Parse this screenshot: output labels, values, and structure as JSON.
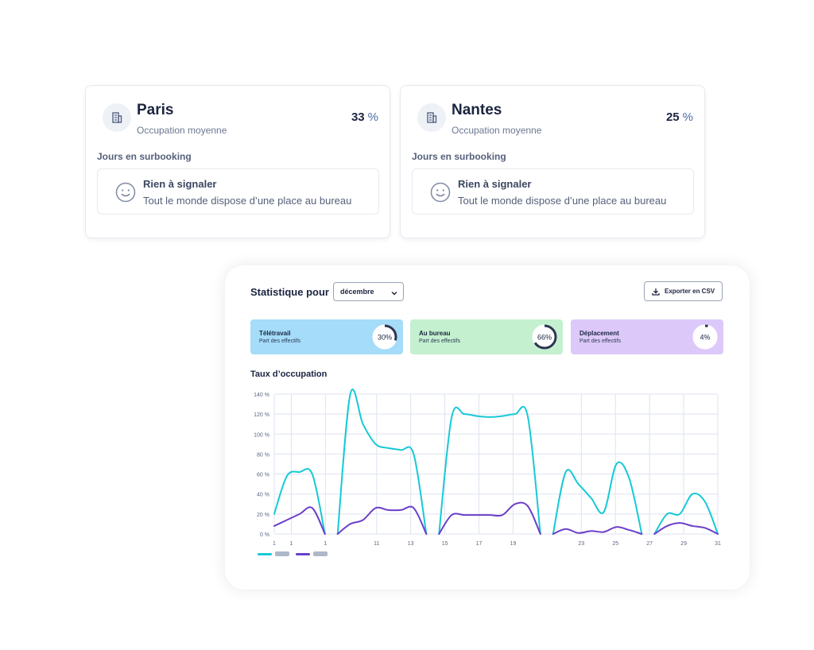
{
  "sites": [
    {
      "name": "Paris",
      "subtitle": "Occupation moyenne",
      "percent": "33",
      "unit": "%",
      "section_label": "Jours en surbooking",
      "notice_title": "Rien à signaler",
      "notice_text": "Tout le monde dispose d’une place au bureau",
      "icon": "building-icon"
    },
    {
      "name": "Nantes",
      "subtitle": "Occupation moyenne",
      "percent": "25",
      "unit": "%",
      "section_label": "Jours en surbooking",
      "notice_title": "Rien à signaler",
      "notice_text": "Tout le monde dispose d’une place au bureau",
      "icon": "building-icon"
    }
  ],
  "stats": {
    "title": "Statistique pour",
    "month": "décembre",
    "export_label": "Exporter en CSV",
    "kpis": [
      {
        "title": "Télétravail",
        "subtitle": "Part des effectifs",
        "value": "30%",
        "fraction": 0.3,
        "color": "#a4dcf9"
      },
      {
        "title": "Au bureau",
        "subtitle": "Part des effectifs",
        "value": "66%",
        "fraction": 0.66,
        "color": "#c4f0cf"
      },
      {
        "title": "Déplacement",
        "subtitle": "Part des effectifs",
        "value": "4%",
        "fraction": 0.04,
        "color": "#dcc9f9"
      }
    ],
    "chart_title": "Taux d’occupation"
  },
  "chart_data": {
    "type": "line",
    "title": "Taux d’occupation",
    "xlabel": "",
    "ylabel": "",
    "ylim": [
      0,
      140
    ],
    "yticks": [
      "0 %",
      "20 %",
      "40 %",
      "60 %",
      "80 %",
      "100 %",
      "120 %",
      "140 %"
    ],
    "grid": true,
    "x_tick_labels": [
      "1",
      "1",
      "",
      "1",
      "",
      "",
      "11",
      "",
      "13",
      "",
      "15",
      "",
      "17",
      "",
      "19",
      "",
      "",
      "",
      "23",
      "",
      "25",
      "",
      "27",
      "",
      "29",
      "",
      "31"
    ],
    "x_tick_shown": [
      true,
      true,
      false,
      true,
      false,
      false,
      true,
      false,
      true,
      false,
      true,
      false,
      true,
      false,
      true,
      false,
      false,
      false,
      true,
      false,
      true,
      false,
      true,
      false,
      true,
      false,
      true
    ],
    "series": [
      {
        "color": "#17c9d6",
        "segments": [
          [
            [
              0,
              20
            ],
            [
              0.5,
              58
            ],
            [
              1,
              62
            ],
            [
              1.5,
              60
            ],
            [
              2,
              0
            ]
          ],
          [
            [
              2.5,
              0
            ],
            [
              3,
              140
            ],
            [
              3.5,
              110
            ],
            [
              4,
              90
            ],
            [
              4.5,
              86
            ],
            [
              5,
              84
            ],
            [
              5.5,
              80
            ],
            [
              6,
              0
            ]
          ],
          [
            [
              6.5,
              0
            ],
            [
              7,
              117
            ],
            [
              7.5,
              120
            ],
            [
              8,
              118
            ],
            [
              8.5,
              117
            ],
            [
              9,
              118
            ],
            [
              9.5,
              120
            ],
            [
              10,
              118
            ],
            [
              10.5,
              0
            ]
          ],
          [
            [
              11,
              0
            ],
            [
              11.5,
              62
            ],
            [
              12,
              50
            ],
            [
              12.5,
              36
            ],
            [
              13,
              22
            ],
            [
              13.5,
              70
            ],
            [
              14,
              56
            ],
            [
              14.5,
              0
            ]
          ],
          [
            [
              15,
              0
            ],
            [
              15.5,
              20
            ],
            [
              16,
              20
            ],
            [
              16.5,
              40
            ],
            [
              17,
              32
            ],
            [
              17.5,
              0
            ]
          ]
        ]
      },
      {
        "color": "#6b3fc9",
        "segments": [
          [
            [
              0,
              8
            ],
            [
              0.5,
              14
            ],
            [
              1,
              20
            ],
            [
              1.5,
              26
            ],
            [
              2,
              0
            ]
          ],
          [
            [
              2.5,
              0
            ],
            [
              3,
              10
            ],
            [
              3.5,
              14
            ],
            [
              4,
              26
            ],
            [
              4.5,
              24
            ],
            [
              5,
              24
            ],
            [
              5.5,
              26
            ],
            [
              6,
              0
            ]
          ],
          [
            [
              6.5,
              0
            ],
            [
              7,
              19
            ],
            [
              7.5,
              19
            ],
            [
              8,
              19
            ],
            [
              8.5,
              19
            ],
            [
              9,
              19
            ],
            [
              9.5,
              30
            ],
            [
              10,
              28
            ],
            [
              10.5,
              0
            ]
          ],
          [
            [
              11,
              0
            ],
            [
              11.5,
              5
            ],
            [
              12,
              1
            ],
            [
              12.5,
              3
            ],
            [
              13,
              2
            ],
            [
              13.5,
              7
            ],
            [
              14,
              4
            ],
            [
              14.5,
              0
            ]
          ],
          [
            [
              15,
              0
            ],
            [
              15.5,
              8
            ],
            [
              16,
              11
            ],
            [
              16.5,
              8
            ],
            [
              17,
              6
            ],
            [
              17.5,
              0
            ]
          ]
        ]
      }
    ]
  }
}
